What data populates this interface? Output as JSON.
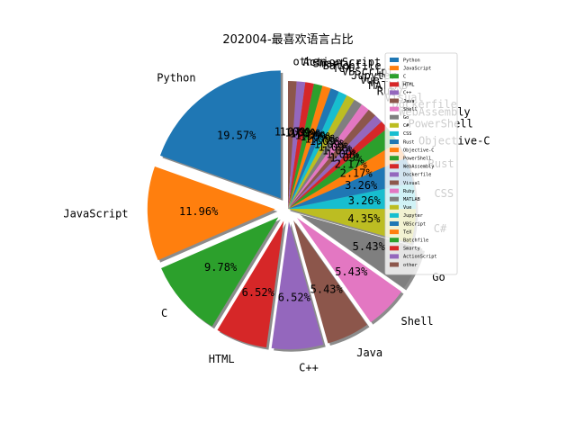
{
  "chart_data": {
    "type": "pie",
    "title": "202004-最喜欢语言占比",
    "legend_position": "right",
    "slices": [
      {
        "name": "Python",
        "value": 19.57,
        "color": "#1f77b4",
        "explode": true
      },
      {
        "name": "JavaScript",
        "value": 11.96,
        "color": "#ff7f0e",
        "explode": true
      },
      {
        "name": "C",
        "value": 9.78,
        "color": "#2ca02c",
        "explode": true
      },
      {
        "name": "HTML",
        "value": 6.52,
        "color": "#d62728",
        "explode": true
      },
      {
        "name": "C++",
        "value": 6.52,
        "color": "#9467bd",
        "explode": true
      },
      {
        "name": "Java",
        "value": 5.43,
        "color": "#8c564b",
        "explode": true
      },
      {
        "name": "Shell",
        "value": 5.43,
        "color": "#e377c2",
        "explode": true
      },
      {
        "name": "Go",
        "value": 5.43,
        "color": "#7f7f7f",
        "explode": true
      },
      {
        "name": "C#",
        "value": 4.35,
        "color": "#bcbd22",
        "explode": false
      },
      {
        "name": "CSS",
        "value": 3.26,
        "color": "#17becf",
        "explode": false
      },
      {
        "name": "Rust",
        "value": 3.26,
        "color": "#1f77b4",
        "explode": false
      },
      {
        "name": "Objective-C",
        "value": 2.17,
        "color": "#ff7f0e",
        "explode": false
      },
      {
        "name": "PowerShell",
        "value": 2.17,
        "color": "#2ca02c",
        "explode": false
      },
      {
        "name": "WebAssembly",
        "value": 1.09,
        "color": "#d62728",
        "explode": false
      },
      {
        "name": "Dockerfile",
        "value": 1.09,
        "color": "#9467bd",
        "explode": false
      },
      {
        "name": "Visual",
        "value": 1.09,
        "color": "#8c564b",
        "explode": false
      },
      {
        "name": "Ruby",
        "value": 1.09,
        "color": "#e377c2",
        "explode": false
      },
      {
        "name": "MATLAB",
        "value": 1.09,
        "color": "#7f7f7f",
        "explode": false
      },
      {
        "name": "Vue",
        "value": 1.09,
        "color": "#bcbd22",
        "explode": false
      },
      {
        "name": "Jupyter",
        "value": 1.09,
        "color": "#17becf",
        "explode": false
      },
      {
        "name": "VBScript",
        "value": 1.09,
        "color": "#1f77b4",
        "explode": false
      },
      {
        "name": "TeX",
        "value": 1.09,
        "color": "#ff7f0e",
        "explode": false
      },
      {
        "name": "Batchfile",
        "value": 1.09,
        "color": "#2ca02c",
        "explode": false
      },
      {
        "name": "Smarty",
        "value": 1.09,
        "color": "#d62728",
        "explode": false
      },
      {
        "name": "ActionScript",
        "value": 1.09,
        "color": "#9467bd",
        "explode": false
      },
      {
        "name": "other",
        "value": 1.07,
        "color": "#8c564b",
        "explode": false
      }
    ]
  }
}
